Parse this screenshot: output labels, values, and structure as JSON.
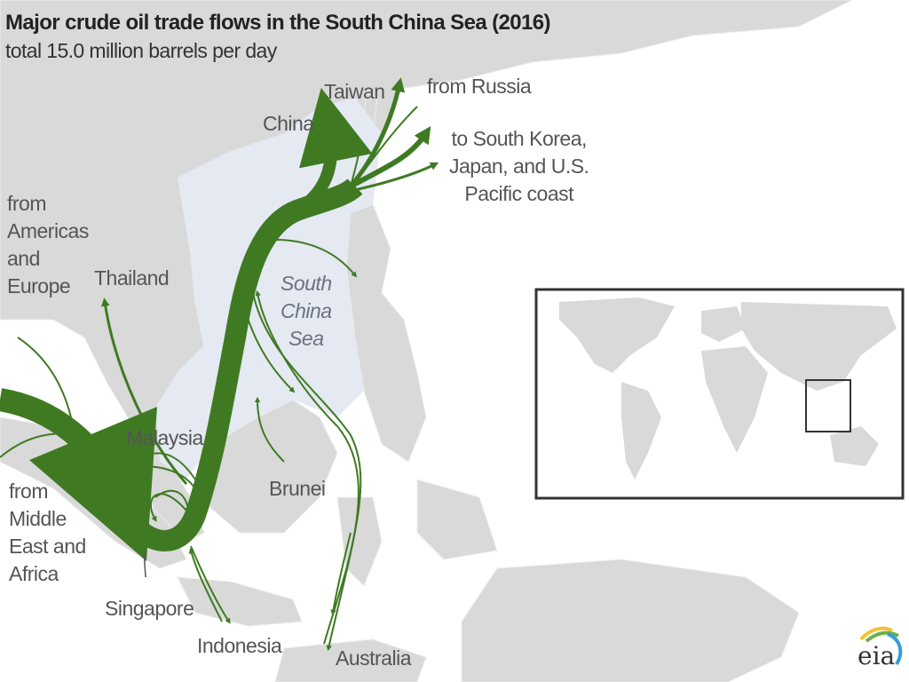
{
  "title": "Major crude oil trade flows in the South China Sea (2016)",
  "subtitle": "total 15.0 million barrels per day",
  "labels": {
    "china": "China",
    "taiwan": "Taiwan",
    "from_russia": "from Russia",
    "to_korea_japan_us": "to South Korea,\nJapan, and U.S.\nPacific coast",
    "from_americas_europe": "from\nAmericas\nand\nEurope",
    "thailand": "Thailand",
    "south_china_sea": "South\nChina\nSea",
    "malaysia": "Malaysia",
    "brunei": "Brunei",
    "from_middle_east_africa": "from\nMiddle\nEast and\nAfrica",
    "singapore": "Singapore",
    "indonesia": "Indonesia",
    "australia": "Australia"
  },
  "logo": "eia",
  "colors": {
    "flow": "#3f7a22",
    "land": "#d9d9d9",
    "sea": "#e4e9f2",
    "inset_border": "#333333"
  }
}
